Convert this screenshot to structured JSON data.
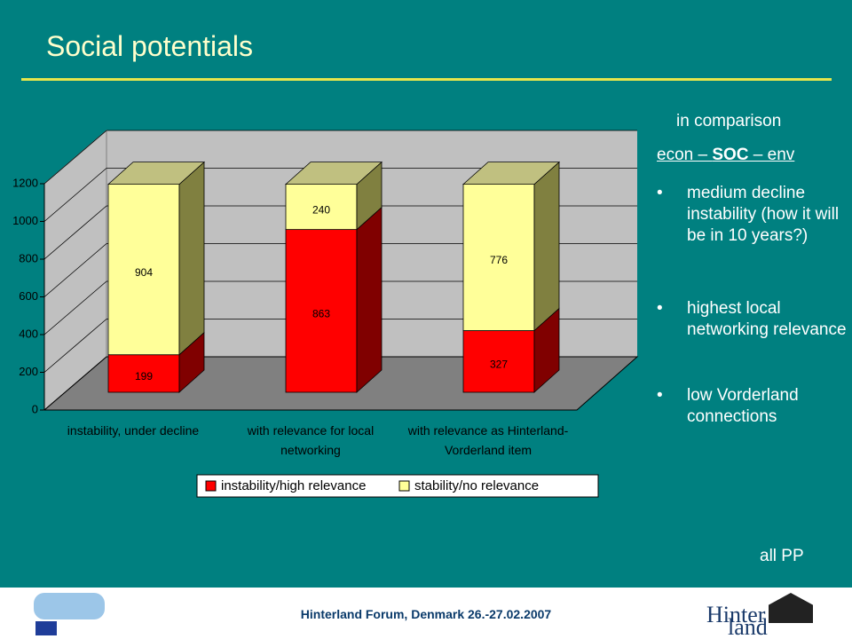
{
  "chart_data": {
    "type": "bar",
    "stacked": true,
    "categories": [
      "instability, under decline",
      "with relevance for local networking",
      "with relevance as Hinterland-Vorderland item"
    ],
    "series": [
      {
        "name": "instability/high relevance",
        "color": "#ff0000",
        "values": [
          199,
          863,
          327
        ]
      },
      {
        "name": "stability/no relevance",
        "color": "#ffff99",
        "values": [
          904,
          240,
          776
        ]
      }
    ],
    "ylim": [
      0,
      1200
    ],
    "yticks": [
      0,
      200,
      400,
      600,
      800,
      1000,
      1200
    ],
    "grid": true,
    "legend": "bottom"
  },
  "slide": {
    "title": "Social potentials",
    "note_heading": "in comparison",
    "note_subheading": [
      "econ – ",
      "SOC",
      " – env"
    ],
    "bullets": [
      "medium decline instability (how it will be in 10 years?)",
      "highest local networking relevance",
      "low Vorderland connections"
    ],
    "footer_note": "all PP",
    "footer": "Hinterland Forum, Denmark 26.-27.02.2007",
    "logo": [
      "Hinter",
      "land"
    ]
  }
}
